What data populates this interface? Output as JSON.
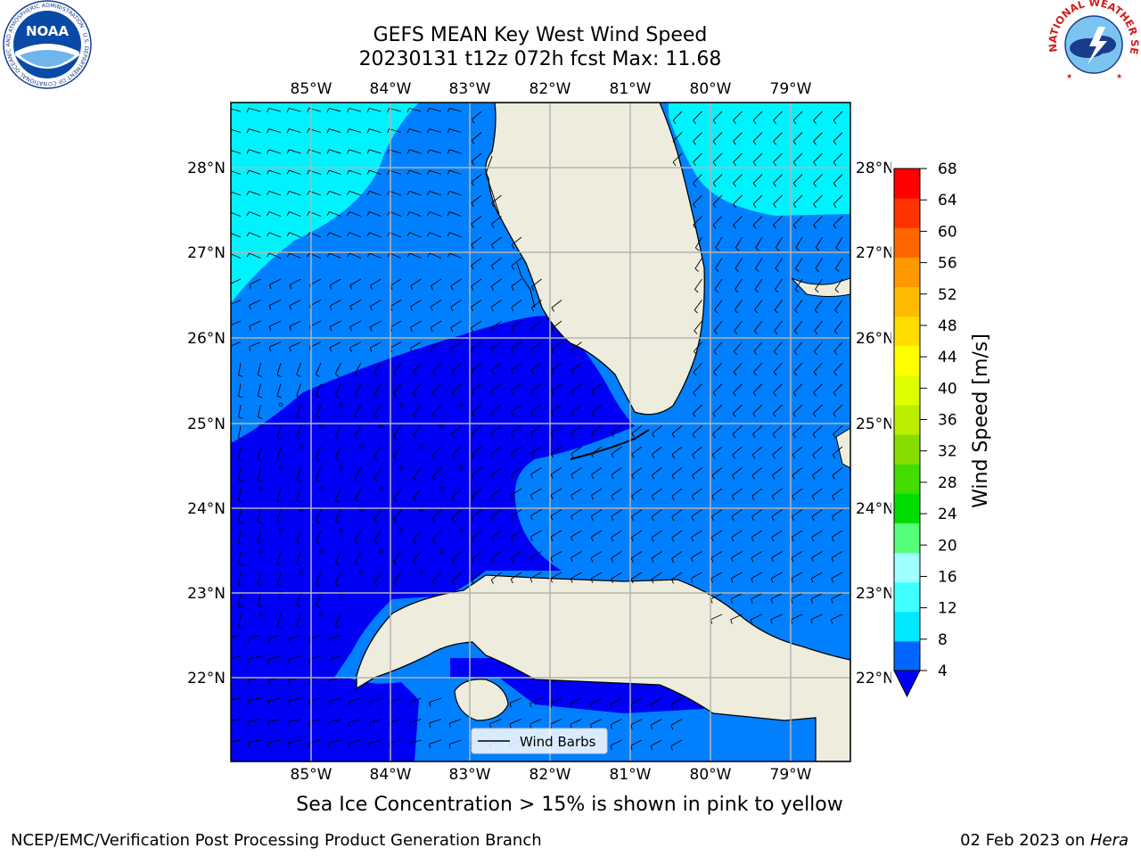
{
  "header": {
    "title_line1": "GEFS MEAN Key West Wind Speed",
    "title_line2": "20230131 t12z 072h fcst   Max: 11.68"
  },
  "logos": {
    "left_text": "NOAA",
    "right_text": "NATIONAL WEATHER SERVICE",
    "left_ring_text": "NATIONAL OCEANIC AND ATMOSPHERIC ADMINISTRATION · U.S. DEPARTMENT OF COMMERCE"
  },
  "map": {
    "lon_labels": [
      "85°W",
      "84°W",
      "83°W",
      "82°W",
      "81°W",
      "80°W",
      "79°W"
    ],
    "lat_labels": [
      "28°N",
      "27°N",
      "26°N",
      "25°N",
      "24°N",
      "23°N",
      "22°N"
    ],
    "legend_label": "Wind Barbs",
    "colors": {
      "cyan": "#00f2ff",
      "mid_blue": "#0080ff",
      "deep_blue": "#0000f5",
      "land": "#eeeddd",
      "grid": "#b4b4b4"
    }
  },
  "colorbar": {
    "label": "Wind Speed [m/s]",
    "ticks": [
      "4",
      "8",
      "12",
      "16",
      "20",
      "24",
      "28",
      "32",
      "36",
      "40",
      "44",
      "48",
      "52",
      "56",
      "60",
      "64",
      "68"
    ],
    "colors": [
      "#0066ff",
      "#00e8ff",
      "#40ffff",
      "#a0ffff",
      "#55ff77",
      "#00dd00",
      "#44dd00",
      "#88dd00",
      "#bbee00",
      "#ddff00",
      "#ffff00",
      "#ffdd00",
      "#ffbb00",
      "#ff9900",
      "#ff6600",
      "#ff3300",
      "#ff0000"
    ],
    "extend_color": "#0000f5"
  },
  "footer": {
    "note": "Sea Ice Concentration > 15% is shown in pink to yellow",
    "left": "NCEP/EMC/Verification Post Processing Product Generation Branch",
    "date": "02 Feb 2023 on ",
    "host": "Hera"
  }
}
